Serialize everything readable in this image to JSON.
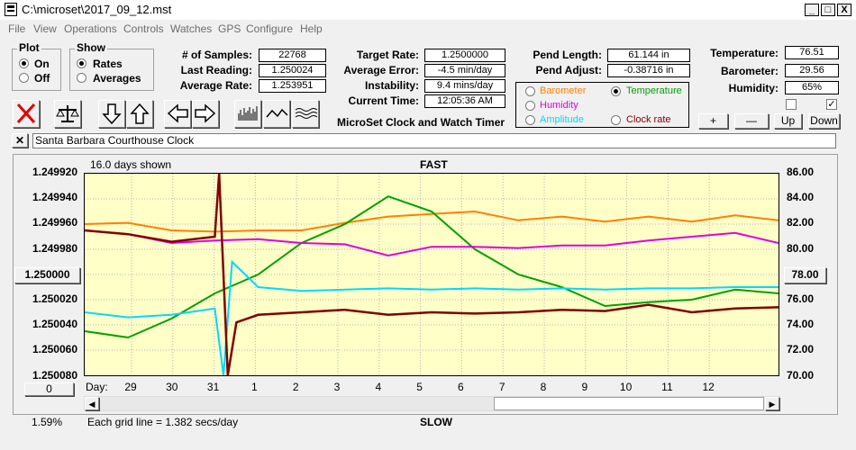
{
  "window": {
    "title": "C:\\microset\\2017_09_12.mst",
    "min_label": "_",
    "max_label": "□",
    "close_label": "X"
  },
  "menu": [
    "File",
    "View",
    "Operations",
    "Controls",
    "Watches",
    "GPS",
    "Configure",
    "Help"
  ],
  "plot_group": {
    "label": "Plot",
    "options": [
      "On",
      "Off"
    ],
    "selected": "On"
  },
  "show_group": {
    "label": "Show",
    "options": [
      "Rates",
      "Averages"
    ],
    "selected": "Rates"
  },
  "stats1": {
    "samples_label": "# of Samples:",
    "samples": "22768",
    "last_label": "Last Reading:",
    "last": "1.250024",
    "avg_label": "Average Rate:",
    "avg": "1.253951"
  },
  "stats2": {
    "target_label": "Target Rate:",
    "target": "1.2500000",
    "error_label": "Average Error:",
    "error": "-4.5 min/day",
    "instability_label": "Instability:",
    "instability": "9.4 mins/day",
    "time_label": "Current Time:",
    "time": "12:05:36 AM"
  },
  "app_caption": "MicroSet Clock and Watch Timer",
  "pend": {
    "length_label": "Pend Length:",
    "length": "61.144 in",
    "adjust_label": "Pend Adjust:",
    "adjust": "-0.38716 in"
  },
  "series_select": {
    "options": [
      {
        "label": "Barometer",
        "color": "#ff8000"
      },
      {
        "label": "Temperature",
        "color": "#00a000"
      },
      {
        "label": "Humidity",
        "color": "#e000e0"
      },
      {
        "label": "Amplitude",
        "color": "#00d8ff"
      },
      {
        "label": "Clock rate",
        "color": "#800000"
      }
    ],
    "selected": "Temperature"
  },
  "env": {
    "temp_label": "Temperature:",
    "temp": "76.51",
    "baro_label": "Barometer:",
    "baro": "29.56",
    "hum_label": "Humidity:",
    "hum": "65%"
  },
  "checkboxes": [
    false,
    true
  ],
  "small_buttons": [
    "+",
    "—",
    "Up",
    "Down"
  ],
  "clock_name": "Santa Barbara Courthouse Clock",
  "chart_header": {
    "days_shown": "16.0 days shown",
    "top": "FAST",
    "bottom": "SLOW",
    "grid_note": "Each grid line = 1.382 secs/day",
    "pct": "1.59%"
  },
  "center_button": "1.250000",
  "right_button": "78.00",
  "bottom_left_button": "0",
  "day_label": "Day:",
  "chart_data": {
    "type": "line",
    "x_label": "Day",
    "x_ticks": [
      "29",
      "30",
      "31",
      "1",
      "2",
      "3",
      "4",
      "5",
      "6",
      "7",
      "8",
      "9",
      "10",
      "11",
      "12"
    ],
    "y_left_ticks": [
      "1.249920",
      "1.249940",
      "1.249960",
      "1.249980",
      "1.250000",
      "1.250020",
      "1.250040",
      "1.250060",
      "1.250080"
    ],
    "y_right_ticks": [
      "86.00",
      "84.00",
      "82.00",
      "80.00",
      "78.00",
      "76.00",
      "74.00",
      "72.00",
      "70.00"
    ],
    "y_left_range": [
      1.24992,
      1.25008
    ],
    "y_right_range": [
      70,
      86
    ],
    "series": [
      {
        "name": "Barometer",
        "color": "#ff8000",
        "x": [
          0,
          1,
          2,
          3,
          4,
          5,
          6,
          7,
          8,
          9,
          10,
          11,
          12,
          13,
          14,
          15,
          16
        ],
        "y": [
          82.0,
          82.1,
          81.5,
          81.4,
          81.5,
          81.5,
          82.1,
          82.6,
          82.8,
          83.0,
          82.3,
          82.6,
          82.2,
          82.6,
          82.2,
          82.7,
          82.3
        ]
      },
      {
        "name": "Temperature",
        "color": "#00a000",
        "x": [
          0,
          1,
          2,
          3,
          4,
          5,
          6,
          7,
          8,
          9,
          10,
          11,
          12,
          13,
          14,
          15,
          16
        ],
        "y": [
          73.5,
          73.0,
          74.5,
          76.5,
          78.0,
          80.5,
          82.0,
          84.2,
          83.0,
          80.0,
          78.0,
          77.0,
          75.5,
          75.8,
          76.0,
          76.8,
          76.5
        ]
      },
      {
        "name": "Humidity",
        "color": "#e000e0",
        "x": [
          0,
          1,
          2,
          3,
          4,
          5,
          6,
          7,
          8,
          9,
          10,
          11,
          12,
          13,
          14,
          15,
          16
        ],
        "y": [
          81.5,
          81.2,
          80.5,
          80.7,
          80.8,
          80.5,
          80.4,
          79.5,
          80.2,
          80.2,
          80.1,
          80.3,
          80.3,
          80.7,
          81.0,
          81.3,
          80.5
        ]
      },
      {
        "name": "Amplitude",
        "color": "#00d8ff",
        "x": [
          0,
          1,
          2,
          3,
          3.2,
          3.4,
          4,
          5,
          6,
          7,
          8,
          9,
          10,
          11,
          12,
          13,
          14,
          15,
          16
        ],
        "y": [
          75.0,
          74.6,
          74.8,
          75.3,
          70.0,
          79.0,
          77.0,
          76.7,
          76.8,
          76.9,
          76.8,
          76.9,
          76.8,
          76.9,
          76.8,
          76.9,
          76.9,
          77.0,
          77.0
        ]
      },
      {
        "name": "Clock rate",
        "color": "#800000",
        "x": [
          0,
          1,
          2,
          3,
          3.1,
          3.3,
          3.5,
          4,
          5,
          6,
          7,
          8,
          9,
          10,
          11,
          12,
          13,
          14,
          15,
          16
        ],
        "y": [
          81.5,
          81.2,
          80.6,
          81.0,
          86.0,
          70.0,
          74.2,
          74.8,
          75.0,
          75.2,
          74.8,
          75.0,
          74.9,
          75.0,
          75.2,
          75.1,
          75.6,
          75.0,
          75.3,
          75.4
        ]
      }
    ]
  }
}
